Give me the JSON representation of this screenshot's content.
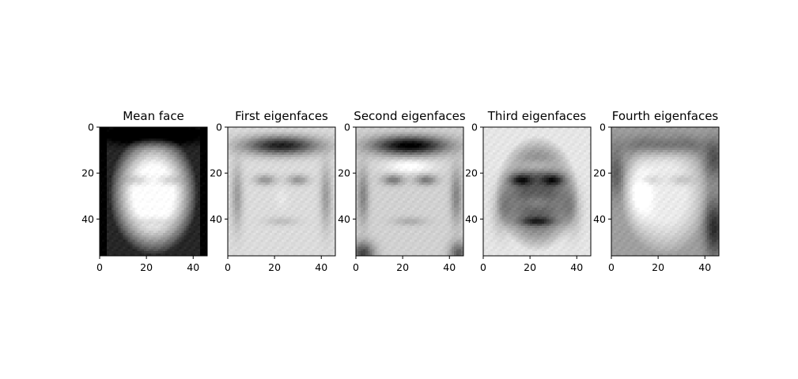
{
  "chart_data": {
    "type": "heatmap",
    "colormap": "gray",
    "panels": [
      {
        "title": "Mean face",
        "face": "mean",
        "xticks": [
          0,
          20,
          40
        ],
        "yticks": [
          0,
          20,
          40
        ],
        "xlim": [
          0,
          46
        ],
        "ylim": [
          56,
          0
        ]
      },
      {
        "title": "First eigenfaces",
        "face": "first",
        "xticks": [
          0,
          20,
          40
        ],
        "yticks": [
          0,
          20,
          40
        ],
        "xlim": [
          0,
          46
        ],
        "ylim": [
          56,
          0
        ]
      },
      {
        "title": "Second eigenfaces",
        "face": "second",
        "xticks": [
          0,
          20,
          40
        ],
        "yticks": [
          0,
          20,
          40
        ],
        "xlim": [
          0,
          46
        ],
        "ylim": [
          56,
          0
        ]
      },
      {
        "title": "Third eigenfaces",
        "face": "third",
        "xticks": [
          0,
          20,
          40
        ],
        "yticks": [
          0,
          20,
          40
        ],
        "xlim": [
          0,
          46
        ],
        "ylim": [
          56,
          0
        ]
      },
      {
        "title": "Fourth eigenfaces",
        "face": "fourth",
        "xticks": [
          0,
          20,
          40
        ],
        "yticks": [
          0,
          20,
          40
        ],
        "xlim": [
          0,
          46
        ],
        "ylim": [
          56,
          0
        ]
      }
    ]
  }
}
